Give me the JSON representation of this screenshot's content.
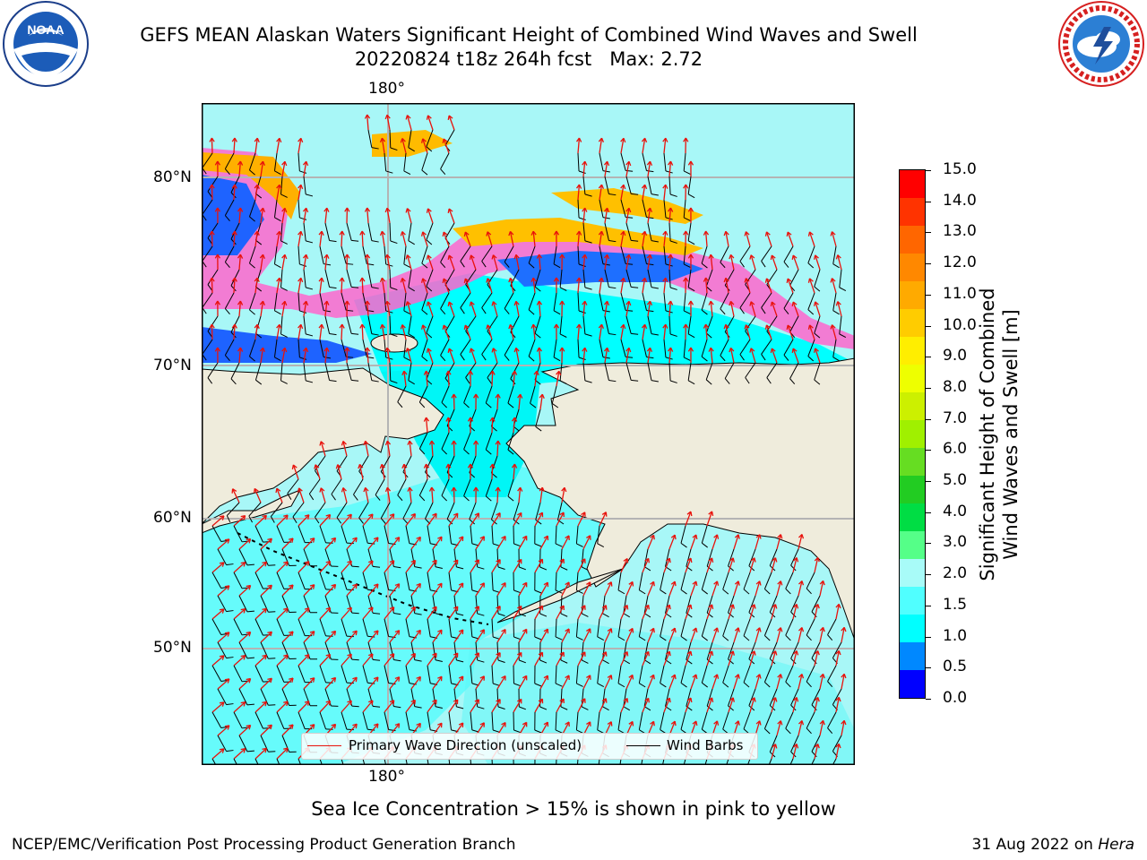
{
  "title": {
    "line1": "GEFS MEAN Alaskan Waters Significant Height of Combined Wind Waves and Swell",
    "line2": "20220824 t18z 264h fcst   Max: 2.72"
  },
  "map": {
    "lon_label_top": "180°",
    "lon_label_bottom": "180°",
    "lat_labels": [
      "80°N",
      "70°N",
      "60°N",
      "50°N"
    ],
    "land_color": "#efecdc",
    "ocean_color": "#a8f7f7",
    "grid_color": "#b4b4b4"
  },
  "legend": {
    "wave_label": "Primary Wave Direction (unscaled)",
    "wave_color": "#e8120c",
    "barb_label": "Wind Barbs",
    "barb_color": "#000000"
  },
  "colorbar": {
    "title_line1": "Significant Height of Combined",
    "title_line2": "Wind Waves and Swell [m]",
    "tick_labels": [
      "15.0",
      "14.0",
      "13.0",
      "12.0",
      "11.0",
      "10.0",
      "9.0",
      "8.0",
      "7.0",
      "6.0",
      "5.0",
      "4.0",
      "3.0",
      "2.0",
      "1.5",
      "1.0",
      "0.5",
      "0.0"
    ],
    "bands_top_to_bottom": [
      "#ff0000",
      "#ff3300",
      "#ff6600",
      "#ff8800",
      "#ffaa00",
      "#ffcc00",
      "#ffee00",
      "#eeff00",
      "#ccf000",
      "#a0f000",
      "#66dd22",
      "#22cc22",
      "#00dd44",
      "#55ff88",
      "#a8fbf8",
      "#50ffff",
      "#00ffff",
      "#0088ff",
      "#0000ff"
    ]
  },
  "ice_note": "Sea Ice Concentration > 15% is shown in pink to yellow",
  "footer": {
    "left": "NCEP/EMC/Verification Post Processing Product Generation Branch",
    "right_date": "31 Aug 2022 on ",
    "right_machine": "Hera"
  },
  "logos": {
    "noaa_text": "NOAA",
    "noaa_ring_text": "NATIONAL OCEANIC AND ATMOSPHERIC ADMINISTRATION · U.S. DEPARTMENT OF COMMERCE",
    "nws_ring_text": "NATIONAL WEATHER SERVICE"
  }
}
